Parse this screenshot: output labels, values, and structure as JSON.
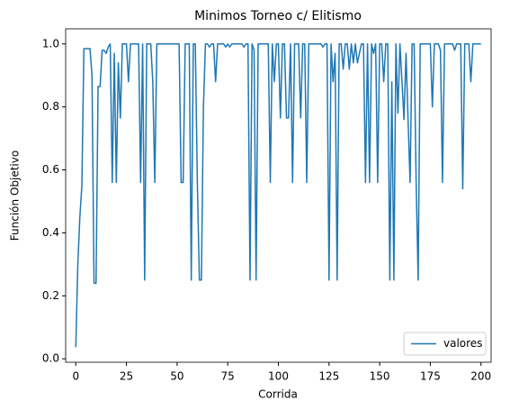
{
  "chart_data": {
    "type": "line",
    "title": "Minimos Torneo c/ Elitismo",
    "x_label": "Corrida",
    "y_label": "Función Objetivo",
    "x": [
      0,
      1,
      2,
      3,
      4,
      5,
      6,
      7,
      8,
      9,
      10,
      11,
      12,
      13,
      14,
      15,
      16,
      17,
      18,
      19,
      20,
      21,
      22,
      23,
      24,
      25,
      26,
      27,
      28,
      29,
      30,
      31,
      32,
      33,
      34,
      35,
      36,
      37,
      38,
      39,
      40,
      41,
      42,
      43,
      44,
      45,
      46,
      47,
      48,
      49,
      50,
      51,
      52,
      53,
      54,
      55,
      56,
      57,
      58,
      59,
      60,
      61,
      62,
      63,
      64,
      65,
      66,
      67,
      68,
      69,
      70,
      71,
      72,
      73,
      74,
      75,
      76,
      77,
      78,
      79,
      80,
      81,
      82,
      83,
      84,
      85,
      86,
      87,
      88,
      89,
      90,
      91,
      92,
      93,
      94,
      95,
      96,
      97,
      98,
      99,
      100,
      101,
      102,
      103,
      104,
      105,
      106,
      107,
      108,
      109,
      110,
      111,
      112,
      113,
      114,
      115,
      116,
      117,
      118,
      119,
      120,
      121,
      122,
      123,
      124,
      125,
      126,
      127,
      128,
      129,
      130,
      131,
      132,
      133,
      134,
      135,
      136,
      137,
      138,
      139,
      140,
      141,
      142,
      143,
      144,
      145,
      146,
      147,
      148,
      149,
      150,
      151,
      152,
      153,
      154,
      155,
      156,
      157,
      158,
      159,
      160,
      161,
      162,
      163,
      164,
      165,
      166,
      167,
      168,
      169,
      170,
      171,
      172,
      173,
      174,
      175,
      176,
      177,
      178,
      179,
      180,
      181,
      182,
      183,
      184,
      185,
      186,
      187,
      188,
      189,
      190,
      191,
      192,
      193,
      194,
      195,
      196,
      197,
      198,
      199,
      200
    ],
    "series": [
      {
        "name": "valores",
        "color": "#1f77b4",
        "values": [
          0.037,
          0.3,
          0.45,
          0.55,
          0.985,
          0.985,
          0.985,
          0.985,
          0.9,
          0.24,
          0.24,
          0.865,
          0.865,
          0.98,
          0.98,
          0.97,
          0.99,
          1,
          0.56,
          0.97,
          0.56,
          0.94,
          0.765,
          1,
          1,
          1,
          0.88,
          1,
          1,
          1,
          1,
          1,
          0.56,
          1,
          0.25,
          1,
          1,
          1,
          0.88,
          0.56,
          1,
          1,
          1,
          1,
          1,
          1,
          1,
          1,
          1,
          1,
          1,
          1,
          0.56,
          0.56,
          1,
          1,
          1,
          0.25,
          1,
          1,
          0.56,
          0.25,
          0.25,
          0.8,
          1,
          1,
          0.99,
          1,
          1,
          0.88,
          1,
          1,
          1,
          1,
          0.99,
          1,
          0.99,
          1,
          1,
          1,
          1,
          1,
          1,
          0.99,
          1,
          1,
          0.25,
          1,
          0.98,
          0.25,
          1,
          1,
          1,
          1,
          1,
          1,
          0.56,
          1,
          0.88,
          1,
          1,
          0.765,
          1,
          1,
          0.765,
          0.765,
          1,
          0.56,
          1,
          1,
          1,
          0.765,
          1,
          1,
          0.56,
          1,
          1,
          1,
          1,
          1,
          1,
          1,
          0.99,
          1,
          1,
          0.25,
          1,
          0.88,
          0.97,
          0.25,
          1,
          1,
          0.92,
          1,
          1,
          0.92,
          1,
          0.94,
          1,
          0.94,
          0.97,
          1,
          1,
          0.56,
          1,
          0.56,
          1,
          0.97,
          1,
          0.56,
          1,
          1,
          0.88,
          1,
          1,
          0.25,
          0.88,
          0.25,
          1,
          0.78,
          1,
          0.88,
          0.76,
          0.97,
          0.76,
          0.56,
          1,
          1,
          0.56,
          0.25,
          1,
          1,
          1,
          1,
          1,
          1,
          0.8,
          1,
          1,
          1,
          0.98,
          0.56,
          1,
          1,
          1,
          1,
          1,
          0.98,
          1,
          1,
          1,
          0.54,
          1,
          1,
          1,
          0.88,
          1,
          1,
          1,
          1,
          1
        ]
      }
    ],
    "xlim": [
      -5,
      205
    ],
    "xticks": [
      0,
      25,
      50,
      75,
      100,
      125,
      150,
      175,
      200
    ],
    "ylim": [
      -0.011,
      1.048
    ],
    "yticks": [
      {
        "value": 0,
        "label": "0.0"
      },
      {
        "value": 0.2,
        "label": "0.2"
      },
      {
        "value": 0.4,
        "label": "0.4"
      },
      {
        "value": 0.6,
        "label": "0.6"
      },
      {
        "value": 0.8,
        "label": "0.8"
      },
      {
        "value": 1,
        "label": "1.0"
      }
    ],
    "grid": false,
    "legend": "lower right"
  }
}
